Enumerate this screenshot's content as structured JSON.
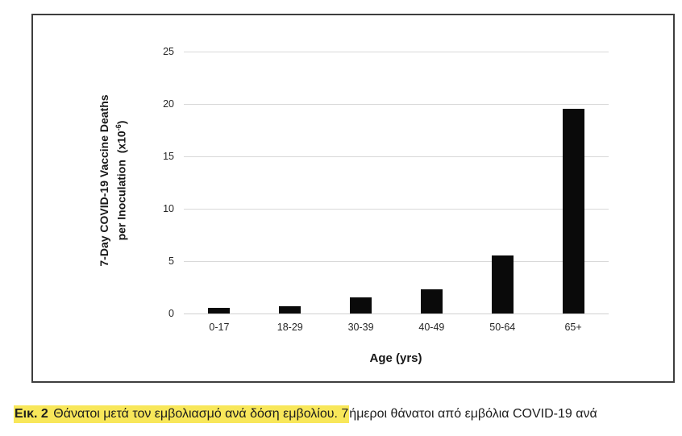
{
  "chart_data": {
    "type": "bar",
    "title": "",
    "categories": [
      "0-17",
      "18-29",
      "30-39",
      "40-49",
      "50-64",
      "65+"
    ],
    "values": [
      0.5,
      0.7,
      1.5,
      2.3,
      5.5,
      19.5
    ],
    "xlabel": "Age (yrs)",
    "ylabel_line1": "7-Day COVID-19 Vaccine Deaths",
    "ylabel_line2_pre": "per Inoculation  (x10",
    "ylabel_line2_sup": "-6",
    "ylabel_line2_post": ")",
    "yticks": [
      0,
      5,
      10,
      15,
      20,
      25
    ],
    "ylim": [
      0,
      25
    ],
    "grid": true,
    "legend": "none",
    "bar_color": "#0a0a0a",
    "gridline_color": "#d9d9d9",
    "axis_line_color": "#d0d0d0",
    "axis_text_color": "#262626"
  },
  "caption": {
    "label": "Εικ. 2",
    "highlighted_text": " Θάνατοι μετά τον εμβολιασμό ανά δόση εμβολίου. 7",
    "plain_text": "ήμεροι θάνατοι από εμβόλια COVID-19 ανά",
    "highlight_color": "#F8E75A"
  }
}
